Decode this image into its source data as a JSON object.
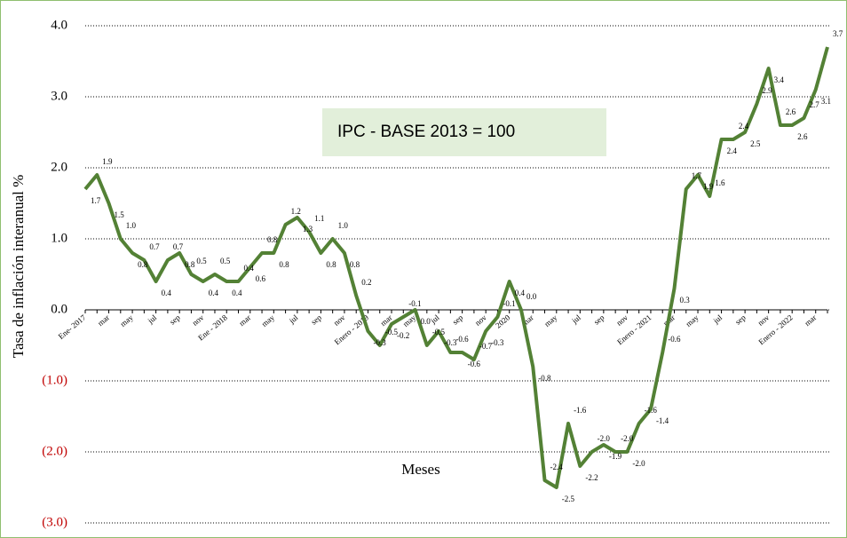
{
  "chart_data": {
    "type": "line",
    "y_label": "Tasa de inflación interanual %",
    "x_label": "Meses",
    "annotation": "IPC - BASE 2013 = 100",
    "categories": [
      "Ene- 2017",
      null,
      "mar",
      null,
      "may",
      null,
      "jul",
      null,
      "sep",
      null,
      "nov",
      null,
      "Ene - 2018",
      null,
      "mar",
      null,
      "may",
      null,
      "jul",
      null,
      "sep",
      null,
      "nov",
      null,
      "Enero - 2019",
      null,
      "mar",
      null,
      "may",
      null,
      "jul",
      null,
      "sep",
      null,
      "nov",
      null,
      "2020",
      null,
      "mar",
      null,
      "may",
      null,
      "jul",
      null,
      "sep",
      null,
      "nov",
      null,
      "Enero - 2021",
      null,
      "mar",
      null,
      "may",
      null,
      "jul",
      null,
      "sep",
      null,
      "nov",
      null,
      "Enero - 2022",
      null,
      "mar",
      null
    ],
    "series": [
      {
        "name": "IPC",
        "color": "#538135",
        "values": [
          1.7,
          1.9,
          1.5,
          1.0,
          0.8,
          0.7,
          0.4,
          0.7,
          0.8,
          0.5,
          0.4,
          0.5,
          0.4,
          0.4,
          0.6,
          0.8,
          0.8,
          1.2,
          1.3,
          1.1,
          0.8,
          1.0,
          0.8,
          0.2,
          -0.3,
          -0.5,
          -0.2,
          -0.1,
          0.0,
          -0.5,
          -0.3,
          -0.6,
          -0.6,
          -0.7,
          -0.3,
          -0.1,
          0.4,
          0.0,
          -0.8,
          -2.4,
          -2.5,
          -1.6,
          -2.2,
          -2.0,
          -1.9,
          -2.0,
          -2.0,
          -1.6,
          -1.4,
          -0.6,
          0.3,
          1.7,
          1.9,
          1.6,
          2.4,
          2.4,
          2.5,
          2.9,
          3.4,
          2.6,
          2.6,
          2.7,
          3.1,
          3.7
        ],
        "value_labels": [
          "1.7",
          "1.9",
          "1.5",
          "1.0",
          "0.8",
          "0.7",
          "0.4",
          "0.7",
          "0.8",
          "0.5",
          "0.4",
          "0.5",
          "0.4",
          "0.4",
          "0.6",
          "0.8",
          "0.8",
          "1.2",
          "1.3",
          "1.1",
          "0.8",
          "1.0",
          "0.8",
          "0.2",
          "-0.3",
          "-0.5",
          "-0.2",
          "-0.1",
          "0.0",
          "-0.5",
          "-0.3",
          "-0.6",
          "-0.6",
          "-0.7",
          "-0.3",
          "-0.1",
          "0.4",
          "0.0",
          "-0.8",
          "-2.4",
          "-2.5",
          "-1.6",
          "-2.2",
          "-2.0",
          "-1.9",
          "-2.0",
          "-2.0",
          "-1.6",
          "-1.4",
          "-0.6",
          "0.3",
          "1.7",
          "1.9",
          "1.6",
          "2.4",
          "2.4",
          "2.5",
          "2.9",
          "3.4",
          "2.6",
          "2.6",
          "2.7",
          "3.1",
          "3.7"
        ]
      }
    ],
    "ylim": [
      -3,
      4
    ],
    "yticks": [
      {
        "value": -3,
        "label": "(3.0)"
      },
      {
        "value": -2,
        "label": "(2.0)"
      },
      {
        "value": -1,
        "label": "(1.0)"
      },
      {
        "value": 0,
        "label": "0.0"
      },
      {
        "value": 1,
        "label": "1.0"
      },
      {
        "value": 2,
        "label": "2.0"
      },
      {
        "value": 3,
        "label": "3.0"
      },
      {
        "value": 4,
        "label": "4.0"
      }
    ],
    "negative_tick_color": "#c00000",
    "grid": true
  }
}
